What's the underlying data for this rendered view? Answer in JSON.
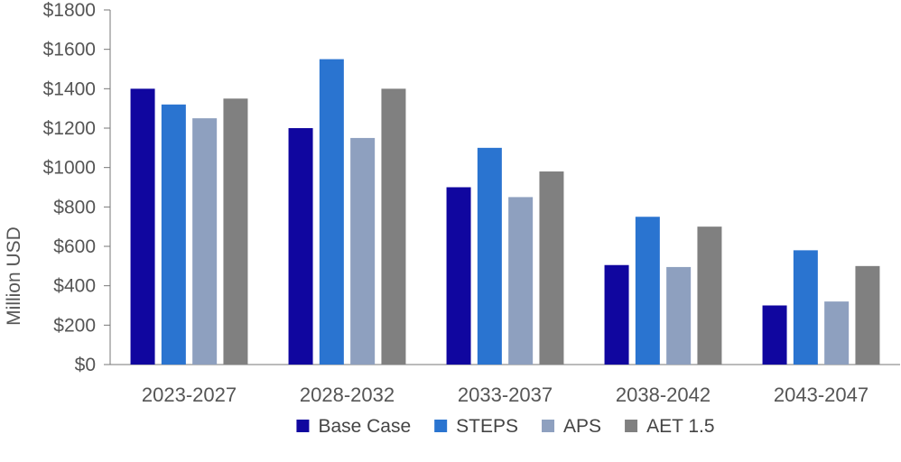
{
  "chart_data": {
    "type": "bar",
    "title": "",
    "xlabel": "",
    "ylabel": "Million USD",
    "ylim": [
      0,
      1800
    ],
    "yticks": [
      "$0",
      "$200",
      "$400",
      "$600",
      "$800",
      "$1000",
      "$1200",
      "$1400",
      "$1600",
      "$1800"
    ],
    "ytick_values": [
      0,
      200,
      400,
      600,
      800,
      1000,
      1200,
      1400,
      1600,
      1800
    ],
    "categories": [
      "2023-2027",
      "2028-2032",
      "2033-2037",
      "2038-2042",
      "2043-2047"
    ],
    "series": [
      {
        "name": "Base Case",
        "color": "#10069f",
        "values": [
          1400,
          1200,
          900,
          505,
          300
        ]
      },
      {
        "name": "STEPS",
        "color": "#2a74d0",
        "values": [
          1320,
          1550,
          1100,
          750,
          580
        ]
      },
      {
        "name": "APS",
        "color": "#8ea0bf",
        "values": [
          1250,
          1150,
          850,
          495,
          320
        ]
      },
      {
        "name": "AET 1.5",
        "color": "#808080",
        "values": [
          1350,
          1400,
          980,
          700,
          500
        ]
      }
    ],
    "legend_position": "bottom-center",
    "grid": false
  }
}
